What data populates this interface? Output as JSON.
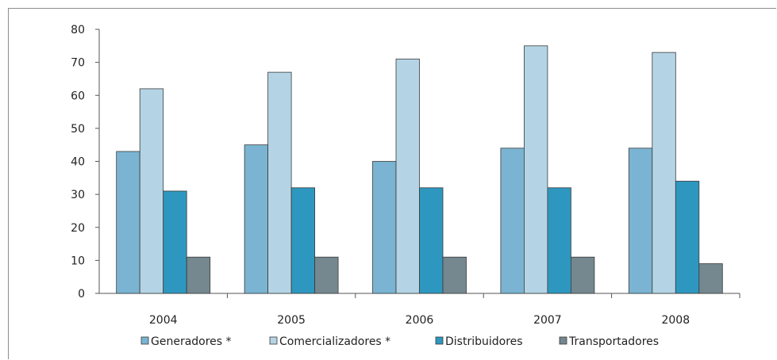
{
  "chart_data": {
    "type": "bar",
    "categories": [
      "2004",
      "2005",
      "2006",
      "2007",
      "2008"
    ],
    "series": [
      {
        "name": "Generadores *",
        "values": [
          43,
          45,
          40,
          44,
          44
        ],
        "color": "#7ab4d2"
      },
      {
        "name": "Comercializadores *",
        "values": [
          62,
          67,
          71,
          75,
          73
        ],
        "color": "#b4d4e5"
      },
      {
        "name": "Distribuidores",
        "values": [
          31,
          32,
          32,
          32,
          34
        ],
        "color": "#2e97bf"
      },
      {
        "name": "Transportadores",
        "values": [
          11,
          11,
          11,
          11,
          9
        ],
        "color": "#75878f"
      }
    ],
    "ylim": [
      0,
      80
    ],
    "yticks": [
      "0",
      "10",
      "20",
      "30",
      "40",
      "50",
      "60",
      "70",
      "80"
    ],
    "legend_position": "bottom",
    "grid": false
  }
}
